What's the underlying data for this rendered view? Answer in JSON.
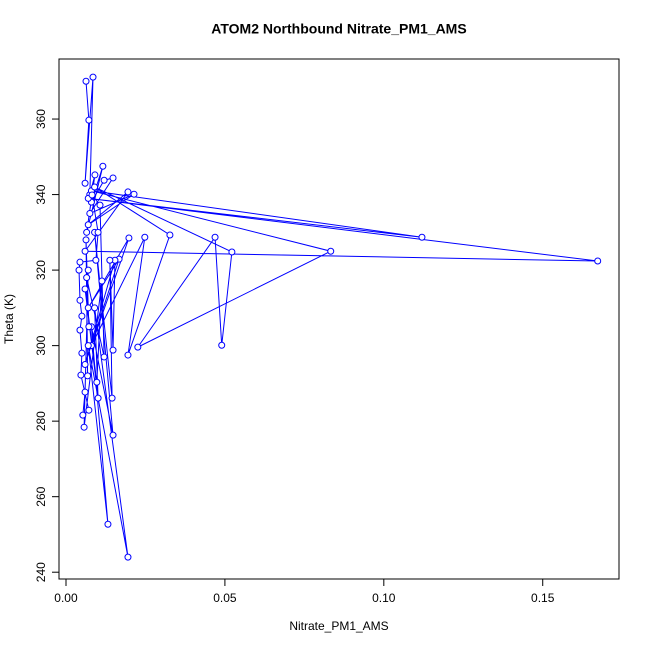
{
  "chart_data": {
    "type": "line",
    "title": "ATOM2 Northbound Nitrate_PM1_AMS",
    "x_label": "Nitrate_PM1_AMS",
    "y_label": "Theta (K)",
    "xlim": [
      -0.0022,
      0.174
    ],
    "ylim": [
      238.2,
      375.9
    ],
    "xticks": [
      {
        "value": 0,
        "label": "0.00"
      },
      0.05,
      {
        "value": 0.1,
        "label": "0.10"
      },
      0.15
    ],
    "yticks": [
      240,
      260,
      280,
      300,
      320,
      340,
      360
    ],
    "series": [
      {
        "color": "#0000ff",
        "x": [
          0.0063,
          0.0072,
          0.006,
          0.0085,
          0.0075,
          0.0091,
          0.0065,
          0.0116,
          0.008,
          0.012,
          0.0148,
          0.0075,
          0.0214,
          0.007,
          0.0195,
          0.006,
          0.1673,
          0.007,
          0.112,
          0.008,
          0.0833,
          0.0226,
          0.0469,
          0.049,
          0.0522,
          0.009,
          0.0327,
          0.0195,
          0.0248,
          0.008,
          0.0198,
          0.007,
          0.0167,
          0.006,
          0.0154,
          0.0148,
          0.0138,
          0.0145,
          0.009,
          0.0148,
          0.008,
          0.0132,
          0.007,
          0.0195,
          0.009,
          0.0101,
          0.006,
          0.0097,
          0.0113,
          0.0057,
          0.007,
          0.006,
          0.0053,
          0.0072,
          0.0047,
          0.005,
          0.0044,
          0.005,
          0.0044,
          0.0041,
          0.0044,
          0.0094,
          0.0101,
          0.0082,
          0.0107,
          0.012,
          0.0065,
          0.0068,
          0.0063,
          0.0072
        ],
        "values": [
          370,
          359.7,
          343,
          371.1,
          340,
          345.2,
          330,
          347.5,
          338,
          343.8,
          344.4,
          335,
          340.1,
          332,
          340.7,
          325,
          322.4,
          339,
          328.7,
          341,
          325,
          299.6,
          328.7,
          300.1,
          324.8,
          342,
          329.3,
          297.5,
          328.7,
          300,
          328.5,
          310,
          322.9,
          295,
          322.6,
          298.8,
          322.6,
          286.1,
          330,
          276.3,
          305,
          252.7,
          300,
          244,
          310,
          286.1,
          315,
          290.3,
          317.1,
          278.4,
          320,
          287.7,
          281.6,
          282.9,
          292.2,
          298,
          304.1,
          307.8,
          312,
          320,
          322.1,
          322.6,
          330,
          339.9,
          337.2,
          297,
          318,
          292,
          328,
          305
        ]
      }
    ]
  }
}
